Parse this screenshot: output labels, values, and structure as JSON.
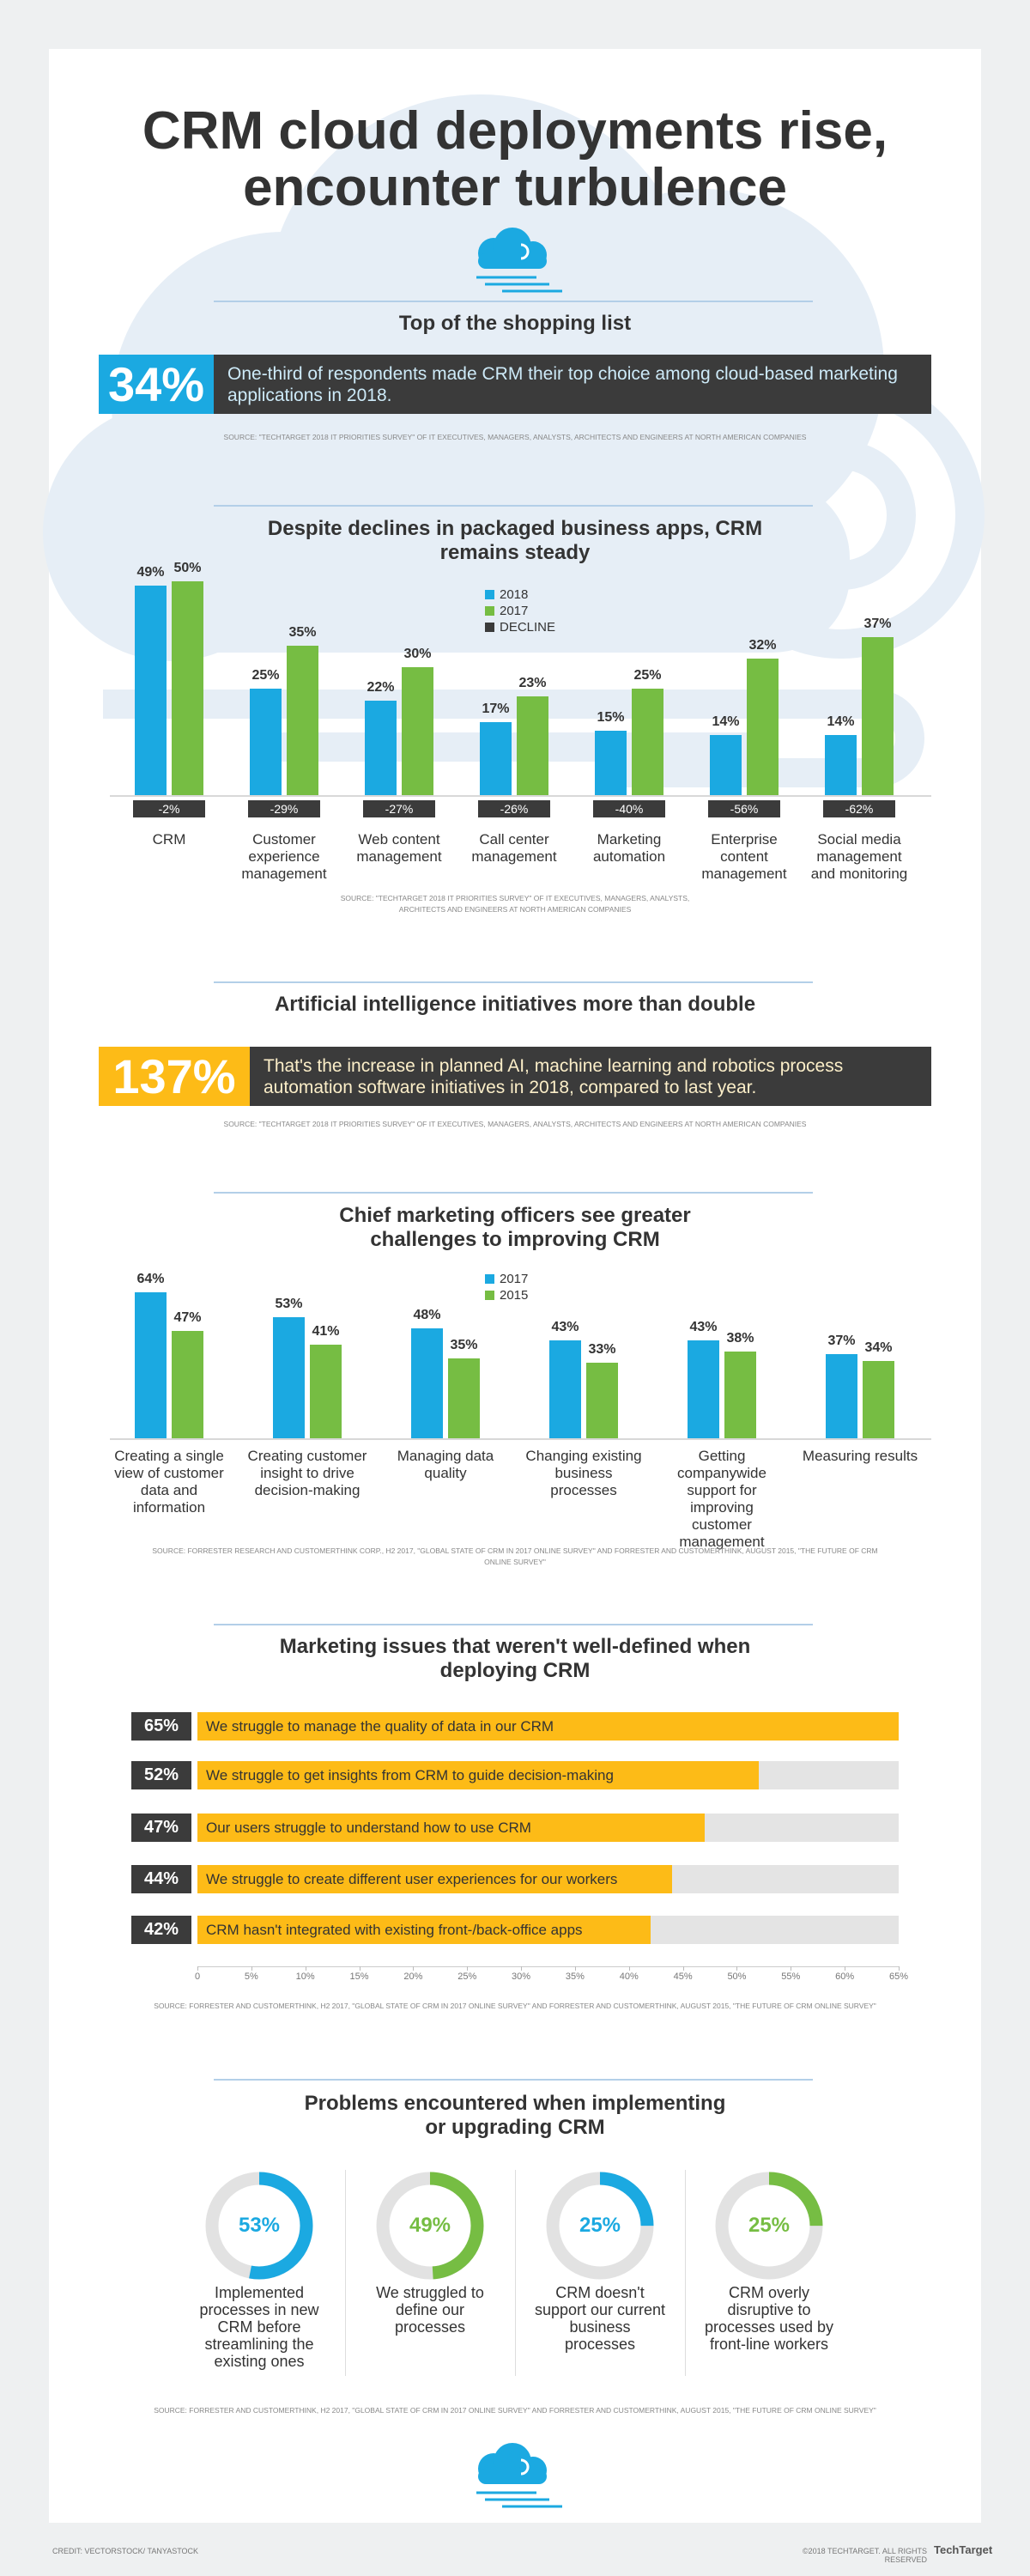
{
  "title": "CRM cloud deployments rise, encounter turbulence",
  "chart_data": [
    {
      "type": "stat",
      "title": "Top of the shopping list",
      "values": [
        34
      ],
      "value_labels": [
        "34%"
      ],
      "color": "#1ba9e1",
      "text": "One-third of respondents made CRM their top choice among cloud-based marketing applications in 2018.",
      "source": "SOURCE: \"TECHTARGET 2018 IT PRIORITIES SURVEY\" OF IT EXECUTIVES, MANAGERS, ANALYSTS, ARCHITECTS AND ENGINEERS AT NORTH AMERICAN COMPANIES"
    },
    {
      "type": "bar",
      "title": "Despite declines in packaged business apps, CRM remains steady",
      "categories": [
        "CRM",
        "Customer experience management",
        "Web content management",
        "Call center management",
        "Marketing automation",
        "Enterprise content management",
        "Social media management and monitoring"
      ],
      "series": [
        {
          "name": "2018",
          "color": "#1ba9e1",
          "values": [
            49,
            25,
            22,
            17,
            15,
            14,
            14
          ],
          "value_labels": [
            "49%",
            "25%",
            "22%",
            "17%",
            "15%",
            "14%",
            "14%"
          ]
        },
        {
          "name": "2017",
          "color": "#76bd43",
          "values": [
            50,
            35,
            30,
            23,
            25,
            32,
            37
          ],
          "value_labels": [
            "50%",
            "35%",
            "30%",
            "23%",
            "25%",
            "32%",
            "37%"
          ]
        }
      ],
      "decline": {
        "name": "DECLINE",
        "color": "#3b3b3b",
        "values": [
          -2,
          -29,
          -27,
          -26,
          -40,
          -56,
          -62
        ],
        "value_labels": [
          "-2%",
          "-29%",
          "-27%",
          "-26%",
          "-40%",
          "-56%",
          "-62%"
        ]
      },
      "ylim": [
        0,
        100
      ],
      "source": "SOURCE: \"TECHTARGET 2018 IT PRIORITIES SURVEY\" OF IT EXECUTIVES, MANAGERS, ANALYSTS, ARCHITECTS AND ENGINEERS AT NORTH AMERICAN COMPANIES"
    },
    {
      "type": "stat",
      "title": "Artificial intelligence initiatives more than double",
      "values": [
        137
      ],
      "value_labels": [
        "137%"
      ],
      "color": "#fdbb17",
      "text": "That's the increase in planned AI, machine learning and robotics process automation software initiatives in 2018, compared to last year.",
      "source": "SOURCE: \"TECHTARGET 2018 IT PRIORITIES SURVEY\" OF IT EXECUTIVES, MANAGERS, ANALYSTS, ARCHITECTS AND ENGINEERS AT NORTH AMERICAN COMPANIES"
    },
    {
      "type": "bar",
      "title": "Chief marketing officers see greater challenges to improving CRM",
      "categories": [
        "Creating a single view of customer data and information",
        "Creating customer insight to drive decision-making",
        "Managing data quality",
        "Changing existing business processes",
        "Getting companywide support for improving customer management",
        "Measuring results"
      ],
      "series": [
        {
          "name": "2017",
          "color": "#1ba9e1",
          "values": [
            64,
            53,
            48,
            43,
            43,
            37
          ],
          "value_labels": [
            "64%",
            "53%",
            "48%",
            "43%",
            "43%",
            "37%"
          ]
        },
        {
          "name": "2015",
          "color": "#76bd43",
          "values": [
            47,
            41,
            35,
            33,
            38,
            34
          ],
          "value_labels": [
            "47%",
            "41%",
            "35%",
            "33%",
            "38%",
            "34%"
          ]
        }
      ],
      "ylim": [
        0,
        100
      ],
      "source": "SOURCE: FORRESTER RESEARCH AND CUSTOMERTHINK CORP., H2 2017, \"GLOBAL STATE OF CRM IN 2017 ONLINE SURVEY\" AND FORRESTER AND CUSTOMERTHINK, AUGUST 2015, \"THE FUTURE OF CRM ONLINE SURVEY\""
    },
    {
      "type": "hbar",
      "title": "Marketing issues that weren't well-defined when deploying CRM",
      "categories": [
        "We struggle to manage the quality of data in our CRM",
        "We struggle to get insights from CRM to guide decision-making",
        "Our users struggle to understand how to use CRM",
        "We struggle to create different user experiences for our workers",
        "CRM hasn't integrated with existing front-/back-office apps"
      ],
      "values": [
        65,
        52,
        47,
        44,
        42
      ],
      "value_labels": [
        "65%",
        "52%",
        "47%",
        "44%",
        "42%"
      ],
      "color": "#fdbb17",
      "xlim": [
        0,
        65
      ],
      "xticks": [
        0,
        {
          "value": 5,
          "label": "5%"
        },
        {
          "value": 10,
          "label": "10%"
        },
        {
          "value": 15,
          "label": "15%"
        },
        {
          "value": 20,
          "label": "20%"
        },
        {
          "value": 25,
          "label": "25%"
        },
        {
          "value": 30,
          "label": "30%"
        },
        {
          "value": 35,
          "label": "35%"
        },
        {
          "value": 40,
          "label": "40%"
        },
        {
          "value": 45,
          "label": "45%"
        },
        {
          "value": 50,
          "label": "50%"
        },
        {
          "value": 55,
          "label": "55%"
        },
        {
          "value": 60,
          "label": "60%"
        },
        {
          "value": 65,
          "label": "65%"
        }
      ],
      "source": "SOURCE: FORRESTER AND CUSTOMERTHINK, H2 2017, \"GLOBAL STATE OF CRM IN 2017 ONLINE SURVEY\" AND FORRESTER AND CUSTOMERTHINK, AUGUST 2015, \"THE FUTURE OF CRM ONLINE SURVEY\""
    },
    {
      "type": "donut",
      "title": "Problems encountered when implementing or upgrading CRM",
      "categories": [
        "Implemented processes in new CRM before streamlining the existing ones",
        "We struggled to define our processes",
        "CRM doesn't support our current business processes",
        "CRM overly disruptive to processes used by front-line workers"
      ],
      "values": [
        53,
        49,
        25,
        25
      ],
      "value_labels": [
        "53%",
        "49%",
        "25%",
        "25%"
      ],
      "colors": [
        "#1ba9e1",
        "#76bd43",
        "#1ba9e1",
        "#76bd43"
      ],
      "source": "SOURCE: FORRESTER AND CUSTOMERTHINK, H2 2017, \"GLOBAL STATE OF CRM IN 2017 ONLINE SURVEY\" AND FORRESTER AND CUSTOMERTHINK, AUGUST 2015, \"THE FUTURE OF CRM ONLINE SURVEY\""
    }
  ],
  "credit": "CREDIT: VECTORSTOCK/ TANYASTOCK",
  "copyright": "©2018 TECHTARGET. ALL RIGHTS RESERVED",
  "logo": "TechTarget"
}
